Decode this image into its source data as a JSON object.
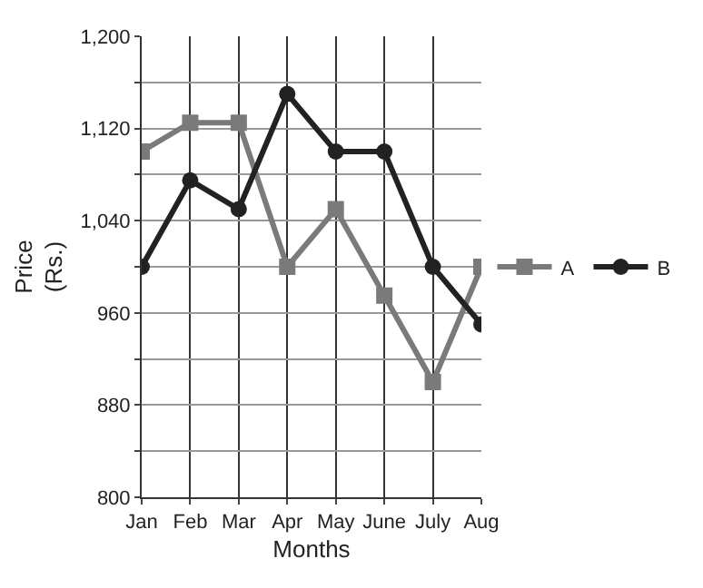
{
  "chart_data": {
    "type": "line",
    "xlabel": "Months",
    "ylabel": "Price\n(Rs.)",
    "categories": [
      "Jan",
      "Feb",
      "Mar",
      "Apr",
      "May",
      "June",
      "July",
      "Aug"
    ],
    "series": [
      {
        "name": "A",
        "color": "#7a7a7a",
        "marker": "square",
        "values": [
          1100,
          1125,
          1125,
          1000,
          1050,
          975,
          900,
          1000
        ]
      },
      {
        "name": "B",
        "color": "#222222",
        "marker": "circle",
        "values": [
          1000,
          1075,
          1050,
          1150,
          1100,
          1100,
          1000,
          950
        ]
      }
    ],
    "ylim": [
      800,
      1200
    ],
    "yticks": [
      800,
      {
        "value": 840,
        "label": null
      },
      880,
      {
        "value": 920,
        "label": null
      },
      960,
      {
        "value": 1000,
        "label": null
      },
      {
        "value": 1040,
        "label": "1,040"
      },
      {
        "value": 1080,
        "label": null
      },
      {
        "value": 1120,
        "label": "1,120"
      },
      {
        "value": 1160,
        "label": null
      },
      {
        "value": 1200,
        "label": "1,200"
      }
    ],
    "grid": true,
    "legend": "right",
    "line_style": "solid"
  }
}
